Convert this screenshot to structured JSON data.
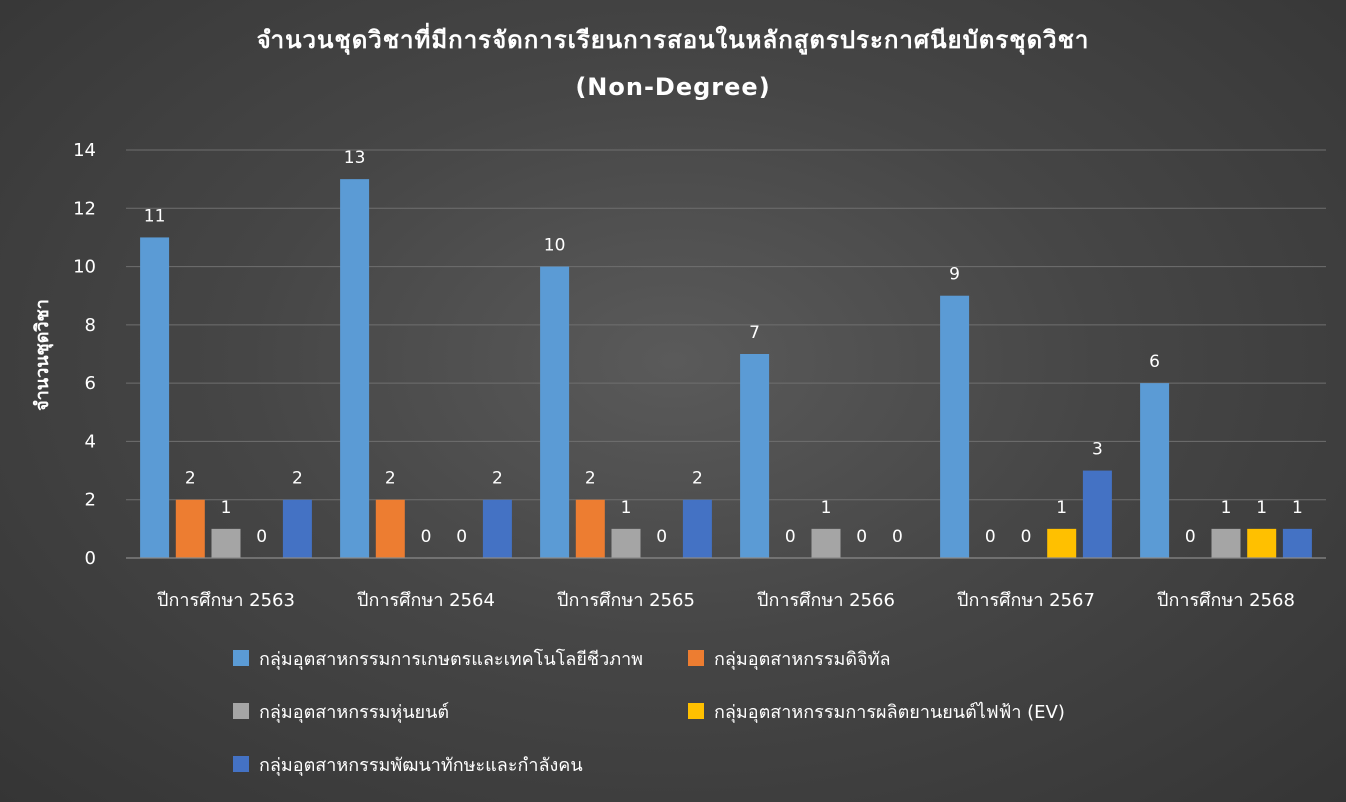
{
  "chart_data": {
    "type": "bar",
    "title_line1": "จำนวนชุดวิชาที่มีการจัดการเรียนการสอนในหลักสูตรประกาศนียบัตรชุดวิชา",
    "title_line2": "(Non-Degree)",
    "xlabel": "",
    "ylabel": "จำนวนชุดวิชา",
    "ylim": [
      0,
      14
    ],
    "yticks": [
      "0",
      "2",
      "4",
      "6",
      "8",
      "10",
      "12",
      "14"
    ],
    "grid": true,
    "legend_position": "bottom",
    "categories": [
      "ปีการศึกษา 2563",
      "ปีการศึกษา 2564",
      "ปีการศึกษา 2565",
      "ปีการศึกษา 2566",
      "ปีการศึกษา 2567",
      "ปีการศึกษา 2568"
    ],
    "series": [
      {
        "name": "กลุ่มอุตสาหกรรมการเกษตรและเทคโนโลยีชีวภาพ",
        "color": "#5b9bd5",
        "values": [
          11,
          13,
          10,
          7,
          9,
          6
        ],
        "labels": [
          "11",
          "13",
          "10",
          "7",
          "9",
          "6"
        ]
      },
      {
        "name": "กลุ่มอุตสาหกรรมดิจิทัล",
        "color": "#ed7d31",
        "values": [
          2,
          2,
          2,
          0,
          0,
          0
        ],
        "labels": [
          "2",
          "2",
          "2",
          "0",
          "0",
          "0"
        ]
      },
      {
        "name": "กลุ่มอุตสาหกรรมหุ่นยนต์",
        "color": "#a5a5a5",
        "values": [
          1,
          0,
          1,
          1,
          0,
          1
        ],
        "labels": [
          "1",
          "0",
          "1",
          "1",
          "0",
          "1"
        ]
      },
      {
        "name": "กลุ่มอุตสาหกรรมการผลิตยานยนต์ไฟฟ้า (EV)",
        "color": "#ffc000",
        "values": [
          0,
          0,
          0,
          0,
          1,
          1
        ],
        "labels": [
          "0",
          "0",
          "0",
          "0",
          "1",
          "1"
        ]
      },
      {
        "name": "กลุ่มอุตสาหกรรมพัฒนาทักษะและกำลังคน",
        "color": "#4472c4",
        "values": [
          2,
          2,
          2,
          0,
          3,
          1
        ],
        "labels": [
          "2",
          "2",
          "2",
          "0",
          "3",
          "1"
        ]
      }
    ]
  }
}
